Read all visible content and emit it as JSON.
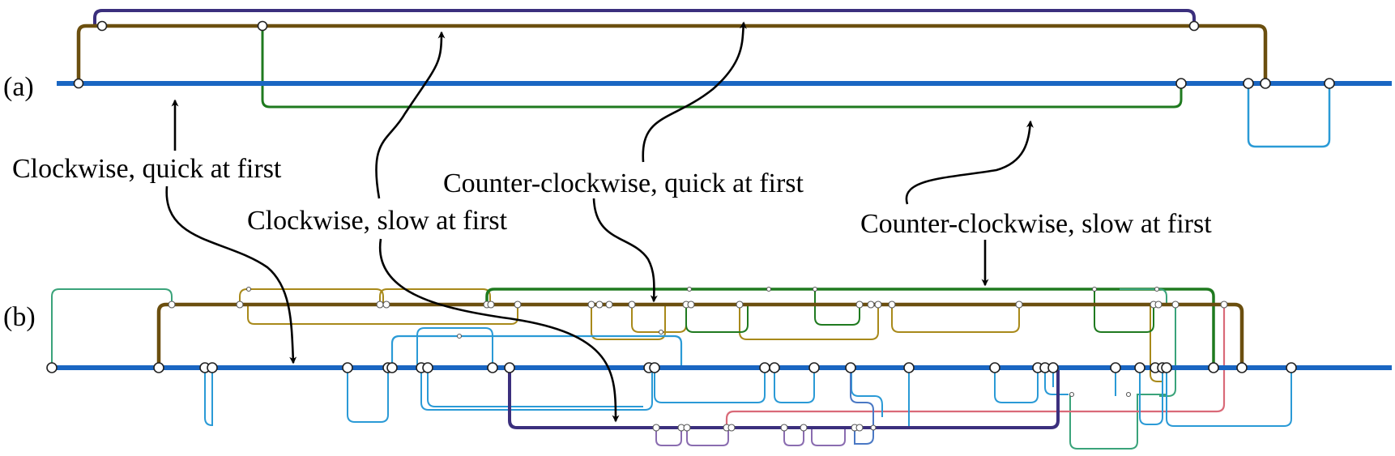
{
  "panels": {
    "a": "(a)",
    "b": "(b)"
  },
  "annotations": {
    "cw_quick": "Clockwise, quick at first",
    "cw_slow": "Clockwise, slow at first",
    "ccw_quick": "Counter-clockwise, quick at first",
    "ccw_slow": "Counter-clockwise, slow at first"
  },
  "colors": {
    "main_line": "#1a66c2",
    "brown": "#6b4f0f",
    "navy": "#3b2f7d",
    "green": "#1f7a1f",
    "light_blue": "#2a9ad6",
    "olive": "#a8891a",
    "teal": "#3aa37a",
    "purple": "#8a6cb0",
    "pink": "#d96a78",
    "blue_mid": "#4a78c4"
  }
}
